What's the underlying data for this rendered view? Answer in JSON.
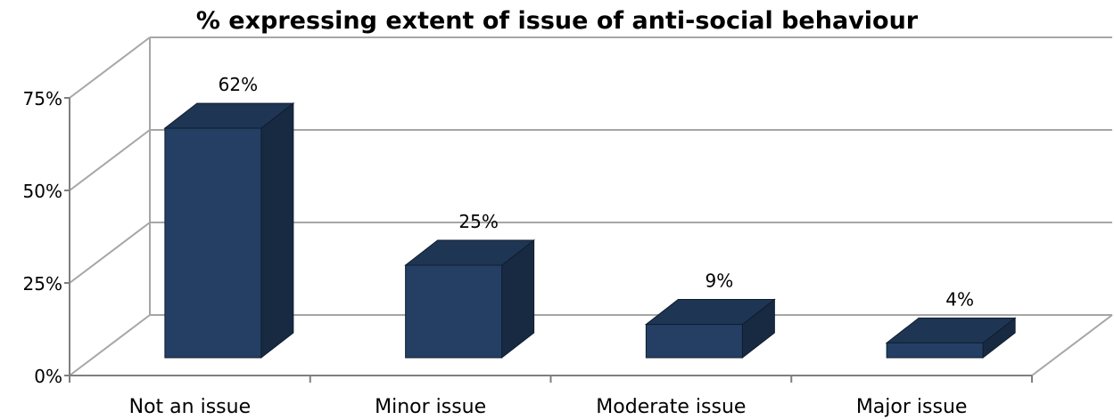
{
  "chart_data": {
    "type": "bar",
    "title": "% expressing extent of issue of anti-social behaviour",
    "categories": [
      "Not an issue",
      "Minor issue",
      "Moderate issue",
      "Major issue"
    ],
    "values": [
      62,
      25,
      9,
      4
    ],
    "data_labels": [
      "62%",
      "25%",
      "9%",
      "4%"
    ],
    "y_ticks": [
      0,
      25,
      50,
      75
    ],
    "y_tick_labels": [
      "0%",
      "25%",
      "50%",
      "75%"
    ],
    "ylim": [
      0,
      75
    ],
    "grid": true,
    "bar_color": "#243f63",
    "bar_top_color": "#1f3554",
    "bar_side_color": "#182a42"
  }
}
